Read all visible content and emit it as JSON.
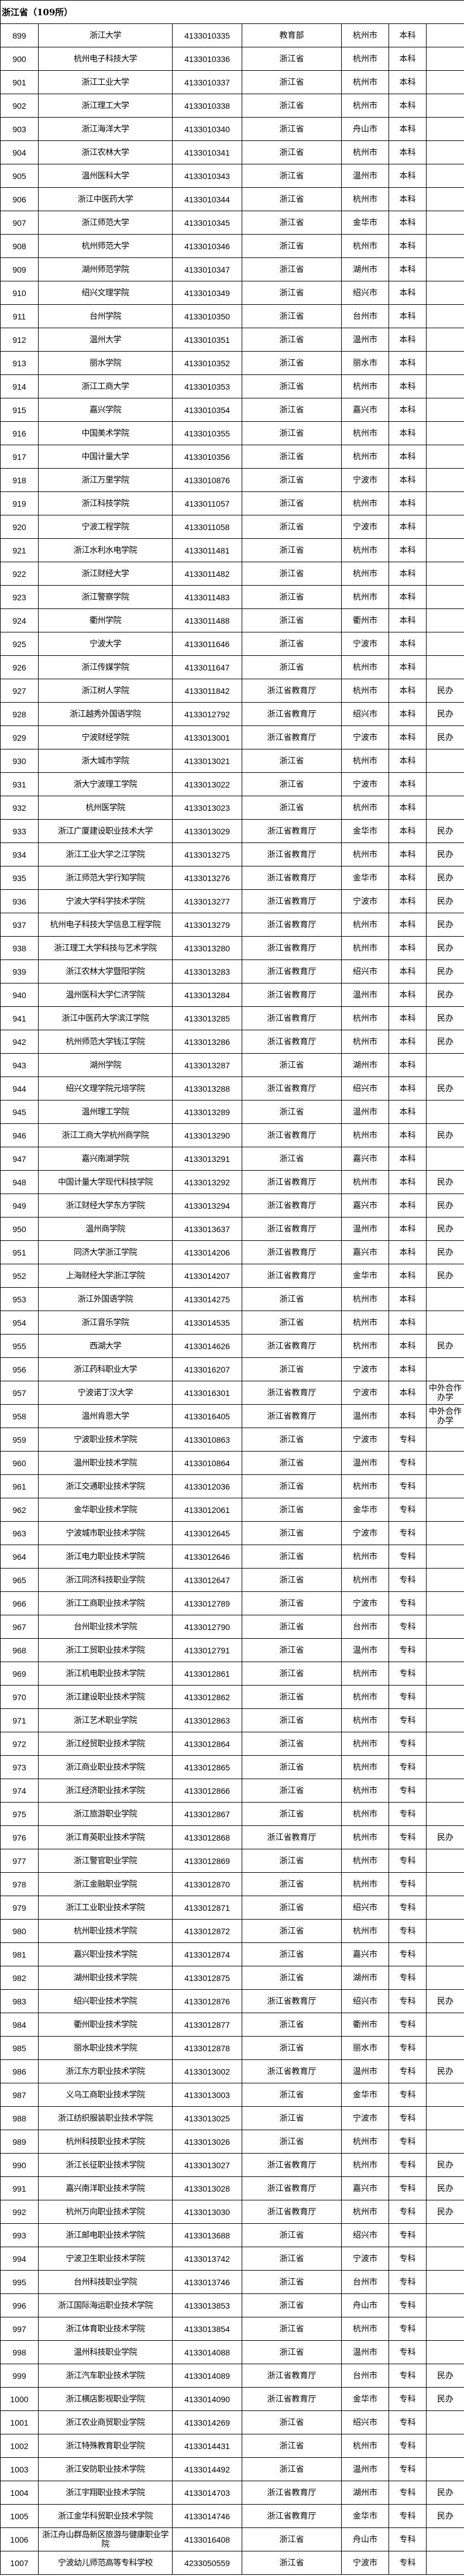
{
  "title": "浙江省（109所）",
  "rows": [
    [
      "899",
      "浙江大学",
      "4133010335",
      "教育部",
      "杭州市",
      "本科",
      ""
    ],
    [
      "900",
      "杭州电子科技大学",
      "4133010336",
      "浙江省",
      "杭州市",
      "本科",
      ""
    ],
    [
      "901",
      "浙江工业大学",
      "4133010337",
      "浙江省",
      "杭州市",
      "本科",
      ""
    ],
    [
      "902",
      "浙江理工大学",
      "4133010338",
      "浙江省",
      "杭州市",
      "本科",
      ""
    ],
    [
      "903",
      "浙江海洋大学",
      "4133010340",
      "浙江省",
      "舟山市",
      "本科",
      ""
    ],
    [
      "904",
      "浙江农林大学",
      "4133010341",
      "浙江省",
      "杭州市",
      "本科",
      ""
    ],
    [
      "905",
      "温州医科大学",
      "4133010343",
      "浙江省",
      "温州市",
      "本科",
      ""
    ],
    [
      "906",
      "浙江中医药大学",
      "4133010344",
      "浙江省",
      "杭州市",
      "本科",
      ""
    ],
    [
      "907",
      "浙江师范大学",
      "4133010345",
      "浙江省",
      "金华市",
      "本科",
      ""
    ],
    [
      "908",
      "杭州师范大学",
      "4133010346",
      "浙江省",
      "杭州市",
      "本科",
      ""
    ],
    [
      "909",
      "湖州师范学院",
      "4133010347",
      "浙江省",
      "湖州市",
      "本科",
      ""
    ],
    [
      "910",
      "绍兴文理学院",
      "4133010349",
      "浙江省",
      "绍兴市",
      "本科",
      ""
    ],
    [
      "911",
      "台州学院",
      "4133010350",
      "浙江省",
      "台州市",
      "本科",
      ""
    ],
    [
      "912",
      "温州大学",
      "4133010351",
      "浙江省",
      "温州市",
      "本科",
      ""
    ],
    [
      "913",
      "丽水学院",
      "4133010352",
      "浙江省",
      "丽水市",
      "本科",
      ""
    ],
    [
      "914",
      "浙江工商大学",
      "4133010353",
      "浙江省",
      "杭州市",
      "本科",
      ""
    ],
    [
      "915",
      "嘉兴学院",
      "4133010354",
      "浙江省",
      "嘉兴市",
      "本科",
      ""
    ],
    [
      "916",
      "中国美术学院",
      "4133010355",
      "浙江省",
      "杭州市",
      "本科",
      ""
    ],
    [
      "917",
      "中国计量大学",
      "4133010356",
      "浙江省",
      "杭州市",
      "本科",
      ""
    ],
    [
      "918",
      "浙江万里学院",
      "4133010876",
      "浙江省",
      "宁波市",
      "本科",
      ""
    ],
    [
      "919",
      "浙江科技学院",
      "4133011057",
      "浙江省",
      "杭州市",
      "本科",
      ""
    ],
    [
      "920",
      "宁波工程学院",
      "4133011058",
      "浙江省",
      "宁波市",
      "本科",
      ""
    ],
    [
      "921",
      "浙江水利水电学院",
      "4133011481",
      "浙江省",
      "杭州市",
      "本科",
      ""
    ],
    [
      "922",
      "浙江财经大学",
      "4133011482",
      "浙江省",
      "杭州市",
      "本科",
      ""
    ],
    [
      "923",
      "浙江警察学院",
      "4133011483",
      "浙江省",
      "杭州市",
      "本科",
      ""
    ],
    [
      "924",
      "衢州学院",
      "4133011488",
      "浙江省",
      "衢州市",
      "本科",
      ""
    ],
    [
      "925",
      "宁波大学",
      "4133011646",
      "浙江省",
      "宁波市",
      "本科",
      ""
    ],
    [
      "926",
      "浙江传媒学院",
      "4133011647",
      "浙江省",
      "杭州市",
      "本科",
      ""
    ],
    [
      "927",
      "浙江树人学院",
      "4133011842",
      "浙江省教育厅",
      "杭州市",
      "本科",
      "民办"
    ],
    [
      "928",
      "浙江越秀外国语学院",
      "4133012792",
      "浙江省教育厅",
      "绍兴市",
      "本科",
      "民办"
    ],
    [
      "929",
      "宁波财经学院",
      "4133013001",
      "浙江省教育厅",
      "宁波市",
      "本科",
      "民办"
    ],
    [
      "930",
      "浙大城市学院",
      "4133013021",
      "浙江省",
      "杭州市",
      "本科",
      ""
    ],
    [
      "931",
      "浙大宁波理工学院",
      "4133013022",
      "浙江省",
      "宁波市",
      "本科",
      ""
    ],
    [
      "932",
      "杭州医学院",
      "4133013023",
      "浙江省",
      "杭州市",
      "本科",
      ""
    ],
    [
      "933",
      "浙江广厦建设职业技术大学",
      "4133013029",
      "浙江省教育厅",
      "金华市",
      "本科",
      "民办"
    ],
    [
      "934",
      "浙江工业大学之江学院",
      "4133013275",
      "浙江省教育厅",
      "杭州市",
      "本科",
      "民办"
    ],
    [
      "935",
      "浙江师范大学行知学院",
      "4133013276",
      "浙江省教育厅",
      "金华市",
      "本科",
      "民办"
    ],
    [
      "936",
      "宁波大学科学技术学院",
      "4133013277",
      "浙江省教育厅",
      "宁波市",
      "本科",
      "民办"
    ],
    [
      "937",
      "杭州电子科技大学信息工程学院",
      "4133013279",
      "浙江省教育厅",
      "杭州市",
      "本科",
      "民办"
    ],
    [
      "938",
      "浙江理工大学科技与艺术学院",
      "4133013280",
      "浙江省教育厅",
      "杭州市",
      "本科",
      "民办"
    ],
    [
      "939",
      "浙江农林大学暨阳学院",
      "4133013283",
      "浙江省教育厅",
      "绍兴市",
      "本科",
      "民办"
    ],
    [
      "940",
      "温州医科大学仁济学院",
      "4133013284",
      "浙江省教育厅",
      "温州市",
      "本科",
      "民办"
    ],
    [
      "941",
      "浙江中医药大学滨江学院",
      "4133013285",
      "浙江省教育厅",
      "杭州市",
      "本科",
      "民办"
    ],
    [
      "942",
      "杭州师范大学钱江学院",
      "4133013286",
      "浙江省教育厅",
      "杭州市",
      "本科",
      "民办"
    ],
    [
      "943",
      "湖州学院",
      "4133013287",
      "浙江省",
      "湖州市",
      "本科",
      ""
    ],
    [
      "944",
      "绍兴文理学院元培学院",
      "4133013288",
      "浙江省教育厅",
      "绍兴市",
      "本科",
      "民办"
    ],
    [
      "945",
      "温州理工学院",
      "4133013289",
      "浙江省",
      "温州市",
      "本科",
      ""
    ],
    [
      "946",
      "浙江工商大学杭州商学院",
      "4133013290",
      "浙江省教育厅",
      "杭州市",
      "本科",
      "民办"
    ],
    [
      "947",
      "嘉兴南湖学院",
      "4133013291",
      "浙江省",
      "嘉兴市",
      "本科",
      ""
    ],
    [
      "948",
      "中国计量大学现代科技学院",
      "4133013292",
      "浙江省教育厅",
      "杭州市",
      "本科",
      "民办"
    ],
    [
      "949",
      "浙江财经大学东方学院",
      "4133013294",
      "浙江省教育厅",
      "嘉兴市",
      "本科",
      "民办"
    ],
    [
      "950",
      "温州商学院",
      "4133013637",
      "浙江省教育厅",
      "温州市",
      "本科",
      "民办"
    ],
    [
      "951",
      "同济大学浙江学院",
      "4133014206",
      "浙江省教育厅",
      "嘉兴市",
      "本科",
      "民办"
    ],
    [
      "952",
      "上海财经大学浙江学院",
      "4133014207",
      "浙江省教育厅",
      "金华市",
      "本科",
      "民办"
    ],
    [
      "953",
      "浙江外国语学院",
      "4133014275",
      "浙江省",
      "杭州市",
      "本科",
      ""
    ],
    [
      "954",
      "浙江音乐学院",
      "4133014535",
      "浙江省",
      "杭州市",
      "本科",
      ""
    ],
    [
      "955",
      "西湖大学",
      "4133014626",
      "浙江省教育厅",
      "杭州市",
      "本科",
      "民办"
    ],
    [
      "956",
      "浙江药科职业大学",
      "4133016207",
      "浙江省",
      "宁波市",
      "本科",
      ""
    ],
    [
      "957",
      "宁波诺丁汉大学",
      "4133016301",
      "浙江省教育厅",
      "宁波市",
      "本科",
      "中外合作办学"
    ],
    [
      "958",
      "温州肯恩大学",
      "4133016405",
      "浙江省教育厅",
      "温州市",
      "本科",
      "中外合作办学"
    ],
    [
      "959",
      "宁波职业技术学院",
      "4133010863",
      "浙江省",
      "宁波市",
      "专科",
      ""
    ],
    [
      "960",
      "温州职业技术学院",
      "4133010864",
      "浙江省",
      "温州市",
      "专科",
      ""
    ],
    [
      "961",
      "浙江交通职业技术学院",
      "4133012036",
      "浙江省",
      "杭州市",
      "专科",
      ""
    ],
    [
      "962",
      "金华职业技术学院",
      "4133012061",
      "浙江省",
      "金华市",
      "专科",
      ""
    ],
    [
      "963",
      "宁波城市职业技术学院",
      "4133012645",
      "浙江省",
      "宁波市",
      "专科",
      ""
    ],
    [
      "964",
      "浙江电力职业技术学院",
      "4133012646",
      "浙江省",
      "杭州市",
      "专科",
      ""
    ],
    [
      "965",
      "浙江同济科技职业学院",
      "4133012647",
      "浙江省",
      "杭州市",
      "专科",
      ""
    ],
    [
      "966",
      "浙江工商职业技术学院",
      "4133012789",
      "浙江省",
      "宁波市",
      "专科",
      ""
    ],
    [
      "967",
      "台州职业技术学院",
      "4133012790",
      "浙江省",
      "台州市",
      "专科",
      ""
    ],
    [
      "968",
      "浙江工贸职业技术学院",
      "4133012791",
      "浙江省",
      "温州市",
      "专科",
      ""
    ],
    [
      "969",
      "浙江机电职业技术学院",
      "4133012861",
      "浙江省",
      "杭州市",
      "专科",
      ""
    ],
    [
      "970",
      "浙江建设职业技术学院",
      "4133012862",
      "浙江省",
      "杭州市",
      "专科",
      ""
    ],
    [
      "971",
      "浙江艺术职业学院",
      "4133012863",
      "浙江省",
      "杭州市",
      "专科",
      ""
    ],
    [
      "972",
      "浙江经贸职业技术学院",
      "4133012864",
      "浙江省",
      "杭州市",
      "专科",
      ""
    ],
    [
      "973",
      "浙江商业职业技术学院",
      "4133012865",
      "浙江省",
      "杭州市",
      "专科",
      ""
    ],
    [
      "974",
      "浙江经济职业技术学院",
      "4133012866",
      "浙江省",
      "杭州市",
      "专科",
      ""
    ],
    [
      "975",
      "浙江旅游职业学院",
      "4133012867",
      "浙江省",
      "杭州市",
      "专科",
      ""
    ],
    [
      "976",
      "浙江育英职业技术学院",
      "4133012868",
      "浙江省教育厅",
      "杭州市",
      "专科",
      "民办"
    ],
    [
      "977",
      "浙江警官职业学院",
      "4133012869",
      "浙江省",
      "杭州市",
      "专科",
      ""
    ],
    [
      "978",
      "浙江金融职业学院",
      "4133012870",
      "浙江省",
      "杭州市",
      "专科",
      ""
    ],
    [
      "979",
      "浙江工业职业技术学院",
      "4133012871",
      "浙江省",
      "绍兴市",
      "专科",
      ""
    ],
    [
      "980",
      "杭州职业技术学院",
      "4133012872",
      "浙江省",
      "杭州市",
      "专科",
      ""
    ],
    [
      "981",
      "嘉兴职业技术学院",
      "4133012874",
      "浙江省",
      "嘉兴市",
      "专科",
      ""
    ],
    [
      "982",
      "湖州职业技术学院",
      "4133012875",
      "浙江省",
      "湖州市",
      "专科",
      ""
    ],
    [
      "983",
      "绍兴职业技术学院",
      "4133012876",
      "浙江省教育厅",
      "绍兴市",
      "专科",
      "民办"
    ],
    [
      "984",
      "衢州职业技术学院",
      "4133012877",
      "浙江省",
      "衢州市",
      "专科",
      ""
    ],
    [
      "985",
      "丽水职业技术学院",
      "4133012878",
      "浙江省",
      "丽水市",
      "专科",
      ""
    ],
    [
      "986",
      "浙江东方职业技术学院",
      "4133013002",
      "浙江省教育厅",
      "温州市",
      "专科",
      "民办"
    ],
    [
      "987",
      "义乌工商职业技术学院",
      "4133013003",
      "浙江省",
      "金华市",
      "专科",
      ""
    ],
    [
      "988",
      "浙江纺织服装职业技术学院",
      "4133013025",
      "浙江省",
      "宁波市",
      "专科",
      ""
    ],
    [
      "989",
      "杭州科技职业技术学院",
      "4133013026",
      "浙江省",
      "杭州市",
      "专科",
      ""
    ],
    [
      "990",
      "浙江长征职业技术学院",
      "4133013027",
      "浙江省教育厅",
      "杭州市",
      "专科",
      "民办"
    ],
    [
      "991",
      "嘉兴南洋职业技术学院",
      "4133013028",
      "浙江省教育厅",
      "嘉兴市",
      "专科",
      "民办"
    ],
    [
      "992",
      "杭州万向职业技术学院",
      "4133013030",
      "浙江省教育厅",
      "杭州市",
      "专科",
      "民办"
    ],
    [
      "993",
      "浙江邮电职业技术学院",
      "4133013688",
      "浙江省",
      "绍兴市",
      "专科",
      ""
    ],
    [
      "994",
      "宁波卫生职业技术学院",
      "4133013742",
      "浙江省",
      "宁波市",
      "专科",
      ""
    ],
    [
      "995",
      "台州科技职业学院",
      "4133013746",
      "浙江省",
      "台州市",
      "专科",
      ""
    ],
    [
      "996",
      "浙江国际海运职业技术学院",
      "4133013853",
      "浙江省",
      "舟山市",
      "专科",
      ""
    ],
    [
      "997",
      "浙江体育职业技术学院",
      "4133013854",
      "浙江省",
      "杭州市",
      "专科",
      ""
    ],
    [
      "998",
      "温州科技职业学院",
      "4133014088",
      "浙江省",
      "温州市",
      "专科",
      ""
    ],
    [
      "999",
      "浙江汽车职业技术学院",
      "4133014089",
      "浙江省教育厅",
      "台州市",
      "专科",
      "民办"
    ],
    [
      "1000",
      "浙江横店影视职业学院",
      "4133014090",
      "浙江省教育厅",
      "金华市",
      "专科",
      "民办"
    ],
    [
      "1001",
      "浙江农业商贸职业学院",
      "4133014269",
      "浙江省",
      "绍兴市",
      "专科",
      ""
    ],
    [
      "1002",
      "浙江特殊教育职业学院",
      "4133014431",
      "浙江省",
      "杭州市",
      "专科",
      ""
    ],
    [
      "1003",
      "浙江安防职业技术学院",
      "4133014492",
      "浙江省",
      "温州市",
      "专科",
      ""
    ],
    [
      "1004",
      "浙江宇翔职业技术学院",
      "4133014703",
      "浙江省教育厅",
      "湖州市",
      "专科",
      "民办"
    ],
    [
      "1005",
      "浙江金华科贸职业技术学院",
      "4133014746",
      "浙江省教育厅",
      "金华市",
      "专科",
      "民办"
    ],
    [
      "1006",
      "浙江舟山群岛新区旅游与健康职业学院",
      "4133016408",
      "浙江省",
      "舟山市",
      "专科",
      ""
    ],
    [
      "1007",
      "宁波幼儿师范高等专科学校",
      "4233050559",
      "浙江省",
      "宁波市",
      "专科",
      ""
    ]
  ]
}
